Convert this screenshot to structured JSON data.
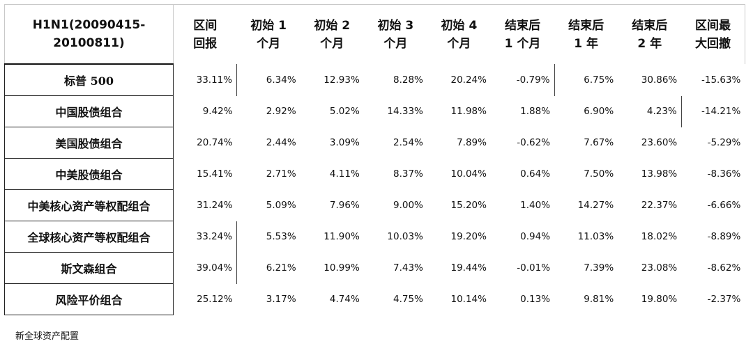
{
  "table": {
    "headers": [
      "H1N1(20090415-\n20100811)",
      "区间\n回报",
      "初始 1\n个月",
      "初始 2\n个月",
      "初始 3\n个月",
      "初始 4\n个月",
      "结束后\n1 个月",
      "结束后\n1 年",
      "结束后\n2 年",
      "区间最\n大回撤"
    ],
    "rows": [
      {
        "label": "标普 500",
        "values": [
          "33.11%",
          "6.34%",
          "12.93%",
          "8.28%",
          "20.24%",
          "-0.79%",
          "6.75%",
          "30.86%",
          "-15.63%"
        ]
      },
      {
        "label": "中国股债组合",
        "values": [
          "9.42%",
          "2.92%",
          "5.02%",
          "14.33%",
          "11.98%",
          "1.88%",
          "6.90%",
          "4.23%",
          "-14.21%"
        ]
      },
      {
        "label": "美国股债组合",
        "values": [
          "20.74%",
          "2.44%",
          "3.09%",
          "2.54%",
          "7.89%",
          "-0.62%",
          "7.67%",
          "23.60%",
          "-5.29%"
        ]
      },
      {
        "label": "中美股债组合",
        "values": [
          "15.41%",
          "2.71%",
          "4.11%",
          "8.37%",
          "10.04%",
          "0.64%",
          "7.50%",
          "13.98%",
          "-8.36%"
        ]
      },
      {
        "label": "中美核心资产等权配组合",
        "values": [
          "31.24%",
          "5.09%",
          "7.96%",
          "9.00%",
          "15.20%",
          "1.40%",
          "14.27%",
          "22.37%",
          "-6.66%"
        ]
      },
      {
        "label": "全球核心资产等权配组合",
        "values": [
          "33.24%",
          "5.53%",
          "11.90%",
          "10.03%",
          "19.20%",
          "0.94%",
          "11.03%",
          "18.02%",
          "-8.89%"
        ]
      },
      {
        "label": "斯文森组合",
        "values": [
          "39.04%",
          "6.21%",
          "10.99%",
          "7.43%",
          "19.44%",
          "-0.01%",
          "7.39%",
          "23.08%",
          "-8.62%"
        ]
      },
      {
        "label": "风险平价组合",
        "values": [
          "25.12%",
          "3.17%",
          "4.74%",
          "4.75%",
          "10.14%",
          "0.13%",
          "9.81%",
          "19.80%",
          "-2.37%"
        ]
      }
    ]
  },
  "footnote": "新全球资产配置"
}
